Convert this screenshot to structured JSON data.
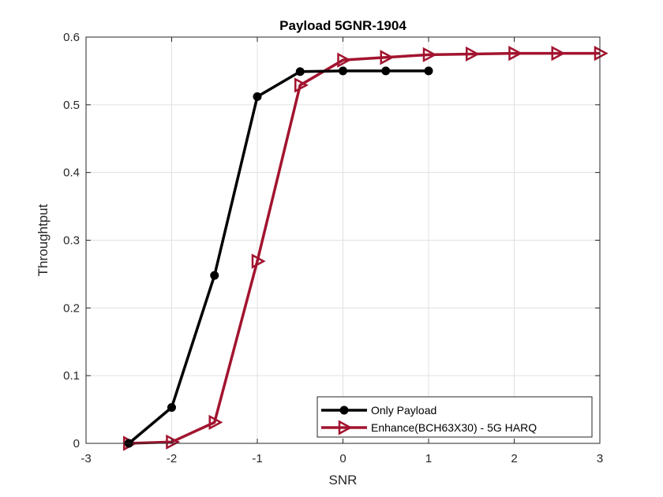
{
  "chart_data": {
    "type": "line",
    "title": "Payload 5GNR-1904",
    "xlabel": "SNR",
    "ylabel": "Throughtput",
    "xlim": [
      -3,
      3
    ],
    "ylim": [
      0,
      0.6
    ],
    "xticks": [
      -3,
      -2,
      -1,
      0,
      1,
      2,
      3
    ],
    "yticks": [
      0,
      0.1,
      0.2,
      0.3,
      0.4,
      0.5,
      0.6
    ],
    "xtick_labels": [
      "-3",
      "-2",
      "-1",
      "0",
      "1",
      "2",
      "3"
    ],
    "ytick_labels": [
      "0",
      "0.1",
      "0.2",
      "0.3",
      "0.4",
      "0.5",
      "0.6"
    ],
    "grid": true,
    "legend_position": "bottom-right",
    "series": [
      {
        "name": "Only Payload",
        "color": "#000000",
        "marker": "circle",
        "x": [
          -2.5,
          -2.0,
          -1.5,
          -1.0,
          -0.5,
          0.0,
          0.5,
          1.0
        ],
        "y": [
          0.0,
          0.053,
          0.248,
          0.512,
          0.549,
          0.55,
          0.55,
          0.55
        ]
      },
      {
        "name": "Enhance(BCH63X30) - 5G HARQ",
        "color": "#a2142f",
        "marker": "triangle-right",
        "x": [
          -2.5,
          -2.0,
          -1.5,
          -1.0,
          -0.5,
          0.0,
          0.5,
          1.0,
          1.5,
          2.0,
          2.5,
          3.0
        ],
        "y": [
          0.0,
          0.002,
          0.031,
          0.269,
          0.529,
          0.566,
          0.57,
          0.574,
          0.575,
          0.576,
          0.576,
          0.576
        ]
      }
    ]
  }
}
